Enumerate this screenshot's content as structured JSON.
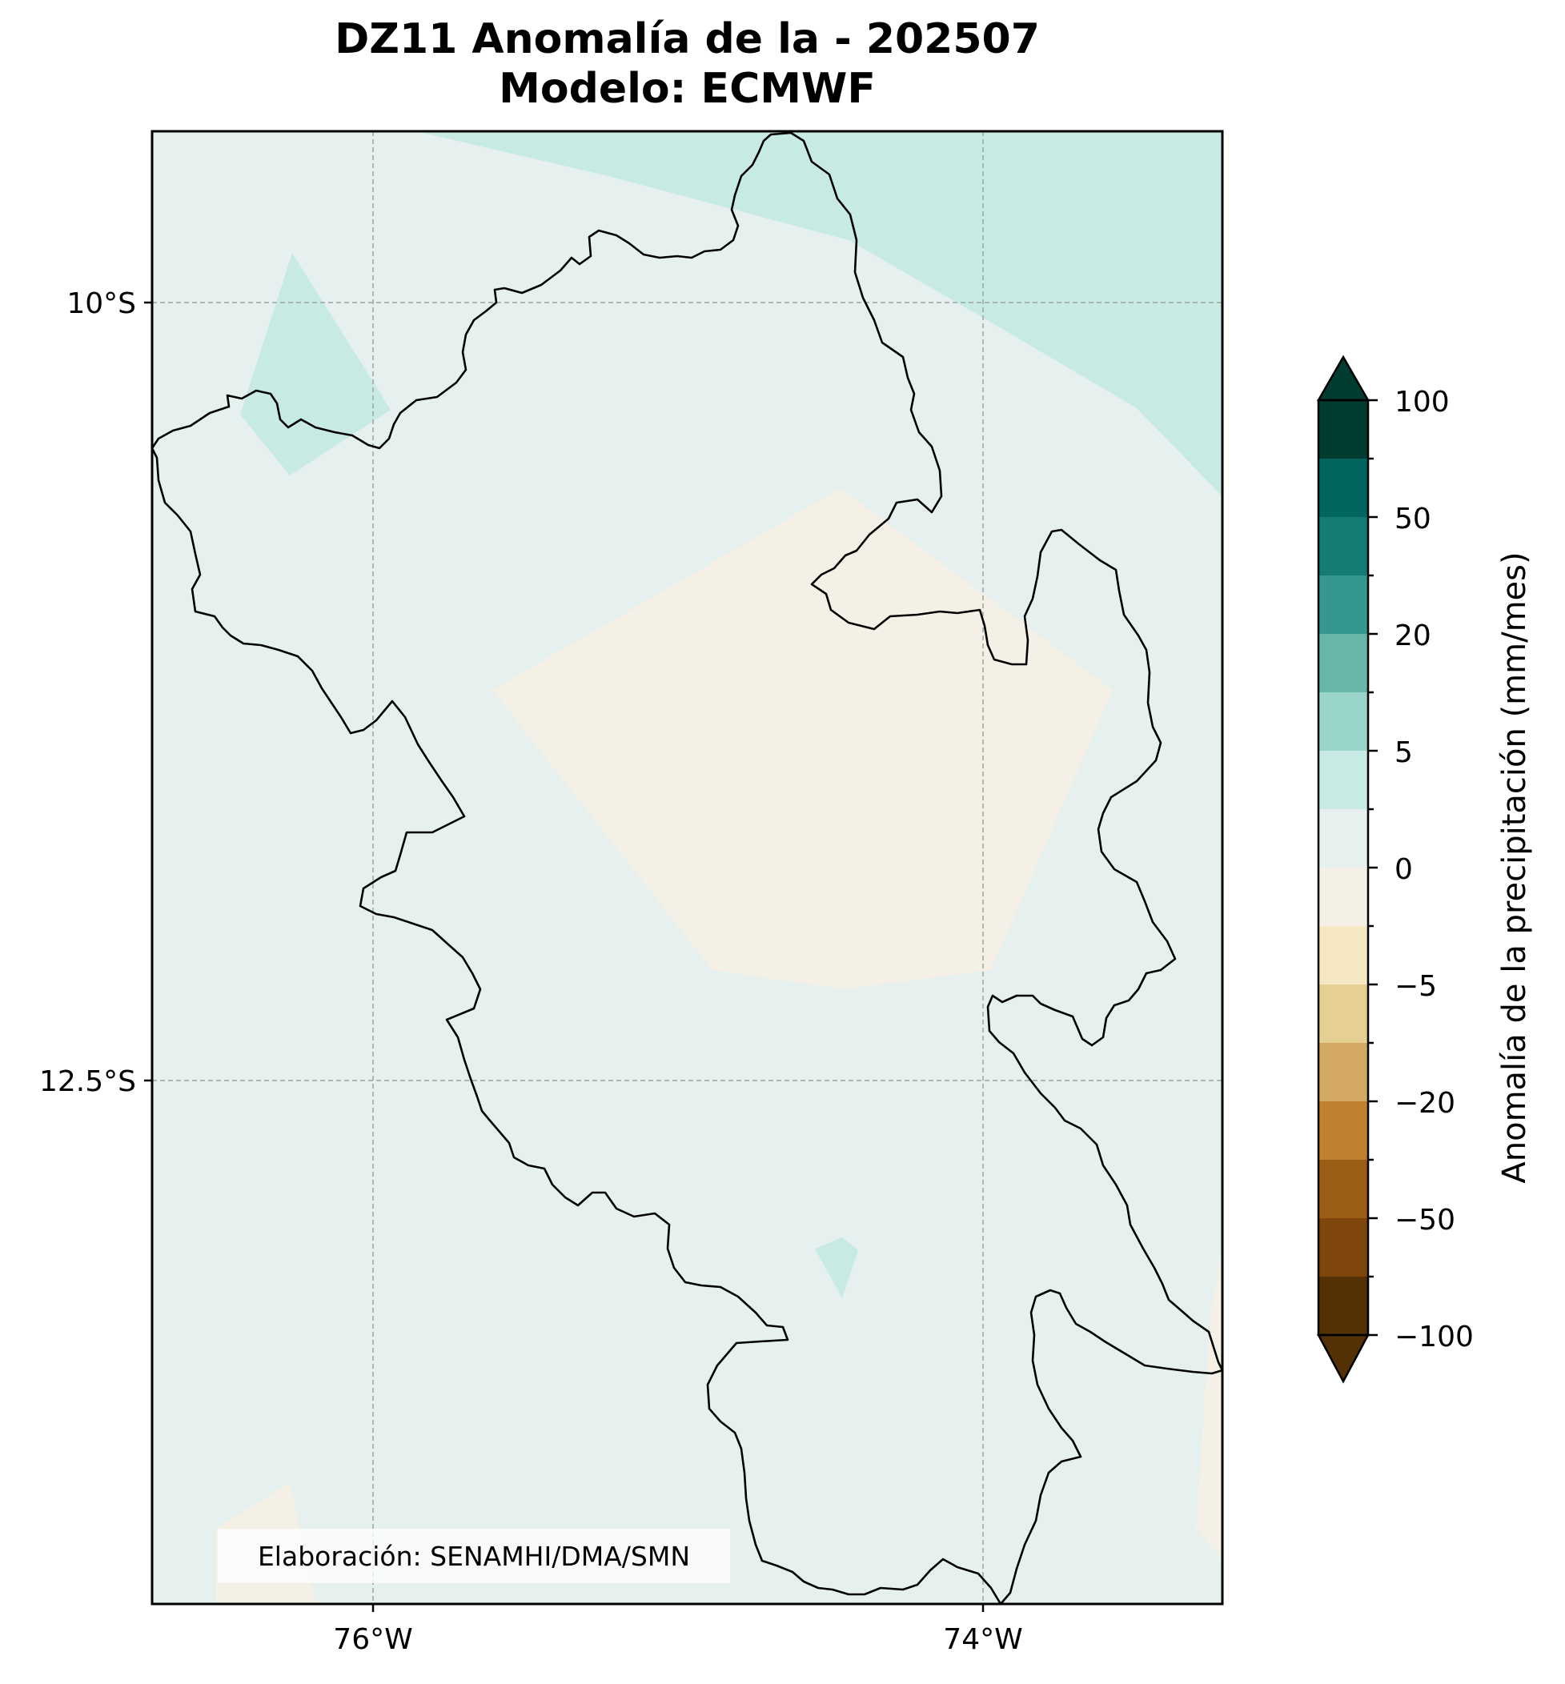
{
  "title": {
    "line1": "DZ11 Anomalía de la - 202507",
    "line2": "Modelo: ECMWF"
  },
  "map": {
    "lon_ticks": [
      "76°W",
      "74°W"
    ],
    "lat_ticks": [
      "10°S",
      "12.5°S"
    ],
    "gridlines": true,
    "background_class": "0 a 2.5 mm/mes",
    "credit": "Elaboración: SENAMHI/DMA/SMN"
  },
  "colorbar": {
    "title": "Anomalía de la precipitación (mm/mes)",
    "tick_labels": [
      "100",
      "50",
      "20",
      "5",
      "0",
      "−5",
      "−20",
      "−50",
      "−100"
    ],
    "extend": "both",
    "colors": [
      "#003c30",
      "#01665e",
      "#157c74",
      "#35978f",
      "#66b6aa",
      "#99d5ca",
      "#c7eae5",
      "#e6f0ee",
      "#f4f0e6",
      "#f6e8c3",
      "#e6cf93",
      "#d3a860",
      "#bf812d",
      "#9c5e17",
      "#7e460a",
      "#543005"
    ]
  }
}
